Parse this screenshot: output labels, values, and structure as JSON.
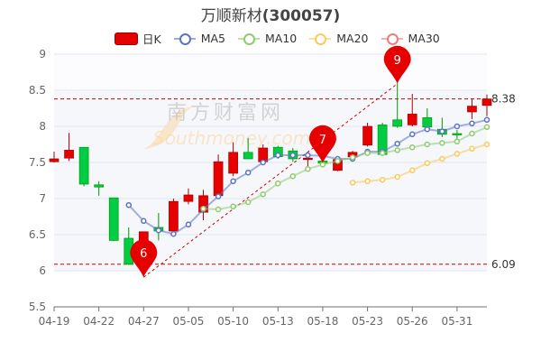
{
  "title": {
    "name": "万顺新材",
    "code": "(300057)"
  },
  "legend": [
    {
      "label": "日K",
      "color": "#e60000"
    },
    {
      "label": "MA5",
      "color": "#5b73c8"
    },
    {
      "label": "MA10",
      "color": "#8fcc6e"
    },
    {
      "label": "MA20",
      "color": "#fcc95a"
    },
    {
      "label": "MA30",
      "color": "#f07b7b"
    }
  ],
  "watermark": {
    "cn": "南方财富网",
    "en": "Southmoney.com"
  },
  "colors": {
    "up": "#e60000",
    "down": "#00cc44",
    "ma5": "#5b73c8",
    "ma10": "#8fcc6e",
    "ma20": "#fcc95a",
    "mark": "#cc0000"
  },
  "chart_data": {
    "type": "candlestick",
    "ylim": [
      5.5,
      9
    ],
    "yticks": [
      "9",
      "8.5",
      "8",
      "7.5",
      "7",
      "6.5",
      "6",
      "5.5"
    ],
    "ytick_values": [
      9,
      8.5,
      8,
      7.5,
      7,
      6.5,
      6,
      5.5
    ],
    "grid": true,
    "legend_position": "top",
    "dates": [
      "04-19",
      "04-20",
      "04-21",
      "04-22",
      "04-25",
      "04-26",
      "04-27",
      "04-28",
      "04-29",
      "05-05",
      "05-06",
      "05-09",
      "05-10",
      "05-11",
      "05-12",
      "05-13",
      "05-16",
      "05-17",
      "05-18",
      "05-19",
      "05-20",
      "05-23",
      "05-24",
      "05-25",
      "05-26",
      "05-27",
      "05-30",
      "05-31",
      "06-01",
      "06-02"
    ],
    "xtick_labels": [
      "04-19",
      "04-22",
      "04-27",
      "05-05",
      "05-10",
      "05-13",
      "05-18",
      "05-23",
      "05-26",
      "05-31"
    ],
    "ohlc": [
      [
        7.51,
        7.55,
        7.5,
        7.65
      ],
      [
        7.56,
        7.67,
        7.52,
        7.91
      ],
      [
        7.71,
        7.2,
        7.17,
        7.71
      ],
      [
        7.19,
        7.16,
        7.04,
        7.24
      ],
      [
        7.01,
        6.42,
        6.41,
        7.01
      ],
      [
        6.45,
        6.09,
        6.08,
        6.6
      ],
      [
        6.12,
        6.54,
        6.09,
        6.54
      ],
      [
        6.6,
        6.55,
        6.42,
        6.8
      ],
      [
        6.55,
        6.96,
        6.54,
        7.0
      ],
      [
        6.96,
        7.05,
        6.92,
        7.14
      ],
      [
        6.81,
        7.04,
        6.7,
        7.12
      ],
      [
        7.04,
        7.51,
        7.03,
        7.61
      ],
      [
        7.35,
        7.64,
        7.31,
        7.78
      ],
      [
        7.64,
        7.55,
        7.55,
        7.84
      ],
      [
        7.51,
        7.7,
        7.5,
        7.75
      ],
      [
        7.71,
        7.58,
        7.55,
        7.73
      ],
      [
        7.66,
        7.55,
        7.51,
        7.7
      ],
      [
        7.54,
        7.56,
        7.45,
        7.61
      ],
      [
        7.52,
        7.49,
        7.47,
        7.53
      ],
      [
        7.39,
        7.54,
        7.38,
        7.55
      ],
      [
        7.58,
        7.64,
        7.55,
        7.66
      ],
      [
        7.74,
        8.0,
        7.72,
        8.05
      ],
      [
        8.02,
        7.61,
        7.6,
        8.05
      ],
      [
        8.09,
        8.0,
        7.98,
        8.6
      ],
      [
        8.02,
        8.17,
        8.0,
        8.45
      ],
      [
        8.12,
        7.99,
        7.98,
        8.25
      ],
      [
        7.96,
        7.89,
        7.85,
        8.12
      ],
      [
        7.9,
        7.89,
        7.79,
        7.95
      ],
      [
        8.2,
        8.28,
        8.1,
        8.38
      ],
      [
        8.29,
        8.38,
        8.14,
        8.44
      ]
    ],
    "ohlc_order": [
      "open",
      "close",
      "low",
      "high"
    ],
    "series": [
      {
        "name": "MA5",
        "values": [
          null,
          null,
          null,
          null,
          null,
          6.91,
          6.69,
          6.56,
          6.51,
          6.64,
          6.85,
          7.03,
          7.24,
          7.36,
          7.5,
          7.6,
          7.6,
          7.6,
          7.59,
          7.55,
          7.55,
          7.65,
          7.65,
          7.76,
          7.89,
          7.96,
          7.93,
          8.0,
          8.04,
          8.09
        ]
      },
      {
        "name": "MA10",
        "values": [
          null,
          null,
          null,
          null,
          null,
          null,
          null,
          null,
          null,
          null,
          6.86,
          6.85,
          6.89,
          6.95,
          7.06,
          7.21,
          7.31,
          7.41,
          7.47,
          7.52,
          7.57,
          7.63,
          7.63,
          7.67,
          7.71,
          7.75,
          7.77,
          7.79,
          7.9,
          7.99
        ]
      },
      {
        "name": "MA20",
        "values": [
          null,
          null,
          null,
          null,
          null,
          null,
          null,
          null,
          null,
          null,
          null,
          null,
          null,
          null,
          null,
          null,
          null,
          null,
          null,
          null,
          7.22,
          7.24,
          7.26,
          7.3,
          7.39,
          7.49,
          7.55,
          7.62,
          7.69,
          7.75
        ]
      }
    ],
    "mark_lines": [
      {
        "value": 8.38,
        "label": "8.38"
      },
      {
        "value": 6.09,
        "label": "6.09"
      }
    ],
    "mark_pins": [
      {
        "index": 6,
        "label": "6",
        "value": 5.91
      },
      {
        "index": 18,
        "label": "7",
        "value": 7.49
      },
      {
        "index": 23,
        "label": "9",
        "value": 8.59
      }
    ],
    "trend_line": {
      "from_index": 6,
      "from_value": 5.91,
      "to_index": 23,
      "to_value": 8.59
    }
  }
}
